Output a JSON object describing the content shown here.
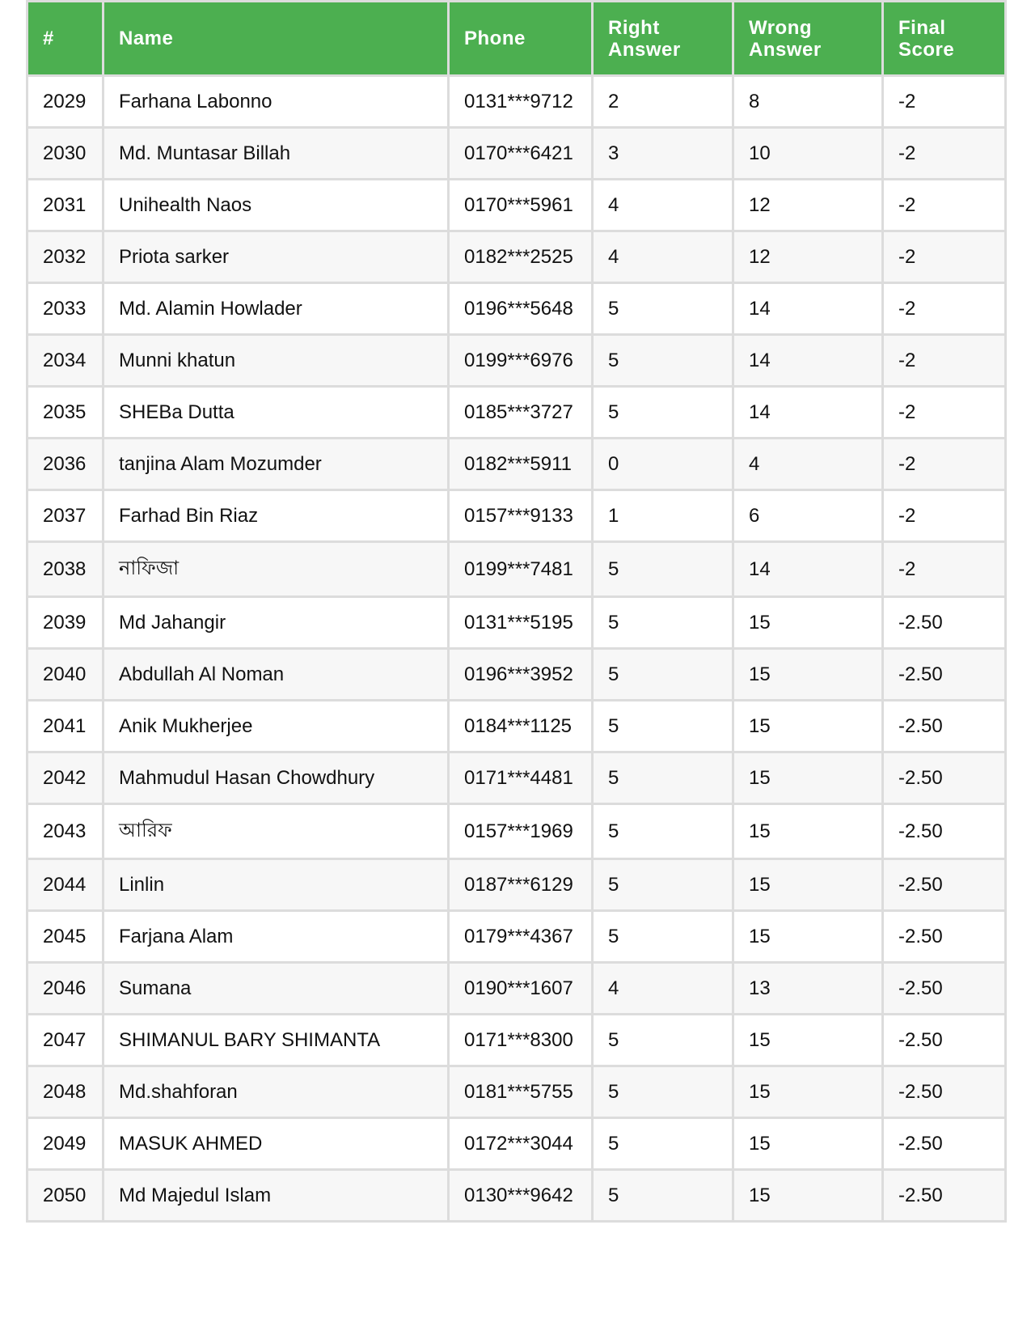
{
  "columns": [
    "#",
    "Name",
    "Phone",
    "Right Answer",
    "Wrong Answer",
    "Final Score"
  ],
  "rows": [
    {
      "id": "2029",
      "name": "Farhana Labonno",
      "phone": "0131***9712",
      "right": "2",
      "wrong": "8",
      "score": "-2"
    },
    {
      "id": "2030",
      "name": "Md. Muntasar Billah",
      "phone": "0170***6421",
      "right": "3",
      "wrong": "10",
      "score": "-2"
    },
    {
      "id": "2031",
      "name": "Unihealth Naos",
      "phone": "0170***5961",
      "right": "4",
      "wrong": "12",
      "score": "-2"
    },
    {
      "id": "2032",
      "name": "Priota sarker",
      "phone": "0182***2525",
      "right": "4",
      "wrong": "12",
      "score": "-2"
    },
    {
      "id": "2033",
      "name": "Md. Alamin Howlader",
      "phone": "0196***5648",
      "right": "5",
      "wrong": "14",
      "score": "-2"
    },
    {
      "id": "2034",
      "name": "Munni khatun",
      "phone": "0199***6976",
      "right": "5",
      "wrong": "14",
      "score": "-2"
    },
    {
      "id": "2035",
      "name": "SHEBa Dutta",
      "phone": "0185***3727",
      "right": "5",
      "wrong": "14",
      "score": "-2"
    },
    {
      "id": "2036",
      "name": "tanjina Alam Mozumder",
      "phone": "0182***5911",
      "right": "0",
      "wrong": "4",
      "score": "-2"
    },
    {
      "id": "2037",
      "name": "Farhad Bin Riaz",
      "phone": "0157***9133",
      "right": "1",
      "wrong": "6",
      "score": "-2"
    },
    {
      "id": "2038",
      "name": "নাফিজা",
      "phone": "0199***7481",
      "right": "5",
      "wrong": "14",
      "score": "-2"
    },
    {
      "id": "2039",
      "name": "Md Jahangir",
      "phone": "0131***5195",
      "right": "5",
      "wrong": "15",
      "score": "-2.50"
    },
    {
      "id": "2040",
      "name": "Abdullah Al Noman",
      "phone": "0196***3952",
      "right": "5",
      "wrong": "15",
      "score": "-2.50"
    },
    {
      "id": "2041",
      "name": "Anik Mukherjee",
      "phone": "0184***1125",
      "right": "5",
      "wrong": "15",
      "score": "-2.50"
    },
    {
      "id": "2042",
      "name": "Mahmudul Hasan Chowdhury",
      "phone": "0171***4481",
      "right": "5",
      "wrong": "15",
      "score": "-2.50"
    },
    {
      "id": "2043",
      "name": "আরিফ",
      "phone": "0157***1969",
      "right": "5",
      "wrong": "15",
      "score": "-2.50"
    },
    {
      "id": "2044",
      "name": "Linlin",
      "phone": "0187***6129",
      "right": "5",
      "wrong": "15",
      "score": "-2.50"
    },
    {
      "id": "2045",
      "name": "Farjana Alam",
      "phone": "0179***4367",
      "right": "5",
      "wrong": "15",
      "score": "-2.50"
    },
    {
      "id": "2046",
      "name": "Sumana",
      "phone": "0190***1607",
      "right": "4",
      "wrong": "13",
      "score": "-2.50"
    },
    {
      "id": "2047",
      "name": "SHIMANUL BARY SHIMANTA",
      "phone": "0171***8300",
      "right": "5",
      "wrong": "15",
      "score": "-2.50"
    },
    {
      "id": "2048",
      "name": "Md.shahforan",
      "phone": "0181***5755",
      "right": "5",
      "wrong": "15",
      "score": "-2.50"
    },
    {
      "id": "2049",
      "name": "MASUK AHMED",
      "phone": "0172***3044",
      "right": "5",
      "wrong": "15",
      "score": "-2.50"
    },
    {
      "id": "2050",
      "name": "Md Majedul Islam",
      "phone": "0130***9642",
      "right": "5",
      "wrong": "15",
      "score": "-2.50"
    }
  ],
  "colors": {
    "header_bg": "#4caf50",
    "header_text": "#ffffff",
    "border": "#dcdcdc",
    "alt_row": "#f7f7f7"
  }
}
